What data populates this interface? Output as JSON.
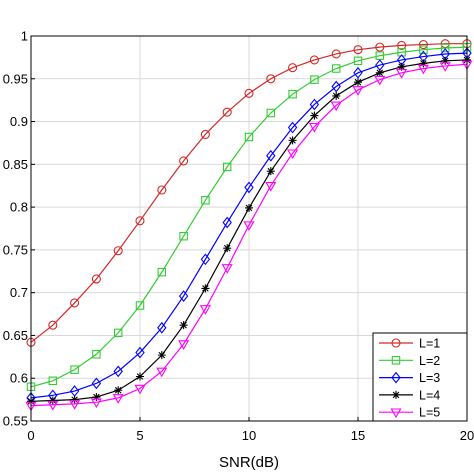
{
  "chart_data": {
    "type": "line",
    "title": "",
    "xlabel": "SNR(dB)",
    "ylabel": "",
    "xlim": [
      0,
      20
    ],
    "ylim": [
      0.55,
      1
    ],
    "xticks": [
      0,
      5,
      10,
      15,
      20
    ],
    "xtick_labels": [
      "0",
      "5",
      "10",
      "15",
      "20"
    ],
    "yticks": [
      0.55,
      0.6,
      0.65,
      0.7,
      0.75,
      0.8,
      0.85,
      0.9,
      0.95,
      1
    ],
    "ytick_labels": [
      "0.55",
      "0.6",
      "0.65",
      "0.7",
      "0.75",
      "0.8",
      "0.85",
      "0.9",
      "0.95",
      "1"
    ],
    "grid": true,
    "legend_position": "bottom-right",
    "x": [
      0,
      1,
      2,
      3,
      4,
      5,
      6,
      7,
      8,
      9,
      10,
      11,
      12,
      13,
      14,
      15,
      16,
      17,
      18,
      19,
      20
    ],
    "series": [
      {
        "name": "L=1",
        "color": "#d62728",
        "marker": "circle",
        "values": [
          0.642,
          0.662,
          0.688,
          0.716,
          0.749,
          0.784,
          0.82,
          0.854,
          0.885,
          0.911,
          0.933,
          0.95,
          0.963,
          0.972,
          0.979,
          0.984,
          0.987,
          0.989,
          0.99,
          0.991,
          0.991
        ]
      },
      {
        "name": "L=2",
        "color": "#33cc33",
        "marker": "square",
        "values": [
          0.59,
          0.597,
          0.61,
          0.628,
          0.653,
          0.685,
          0.724,
          0.766,
          0.808,
          0.847,
          0.882,
          0.91,
          0.932,
          0.949,
          0.962,
          0.971,
          0.977,
          0.981,
          0.984,
          0.986,
          0.987
        ]
      },
      {
        "name": "L=3",
        "color": "#0000ff",
        "marker": "diamond",
        "values": [
          0.577,
          0.58,
          0.585,
          0.594,
          0.608,
          0.63,
          0.659,
          0.696,
          0.739,
          0.782,
          0.823,
          0.86,
          0.893,
          0.92,
          0.941,
          0.957,
          0.966,
          0.972,
          0.976,
          0.979,
          0.98
        ]
      },
      {
        "name": "L=4",
        "color": "#000000",
        "marker": "asterisk",
        "values": [
          0.573,
          0.574,
          0.575,
          0.578,
          0.586,
          0.602,
          0.627,
          0.662,
          0.705,
          0.752,
          0.799,
          0.842,
          0.878,
          0.907,
          0.93,
          0.946,
          0.957,
          0.964,
          0.968,
          0.971,
          0.972
        ]
      },
      {
        "name": "L=5",
        "color": "#ff00ff",
        "marker": "triangle-down",
        "values": [
          0.568,
          0.569,
          0.57,
          0.572,
          0.577,
          0.588,
          0.608,
          0.64,
          0.681,
          0.729,
          0.779,
          0.825,
          0.863,
          0.894,
          0.919,
          0.937,
          0.949,
          0.957,
          0.962,
          0.965,
          0.967
        ]
      }
    ]
  }
}
